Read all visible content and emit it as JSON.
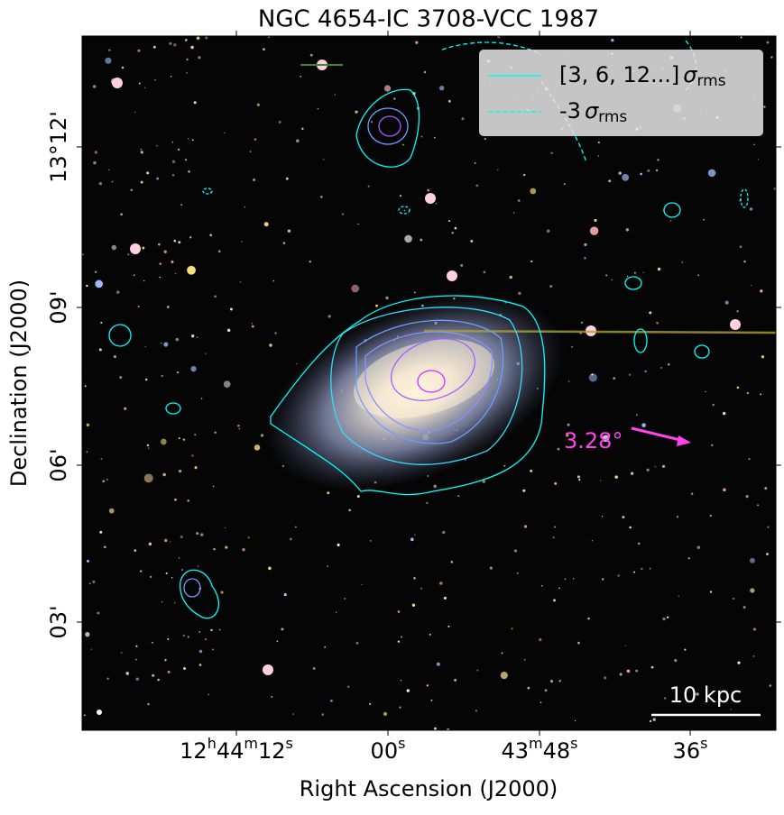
{
  "title": "NGC 4654-IC 3708-VCC 1987",
  "xlabel": "Right Ascension (J2000)",
  "ylabel": "Declination (J2000)",
  "xticks": [
    [
      [
        "12",
        "h"
      ],
      [
        "44",
        "m"
      ],
      [
        "12",
        "s"
      ]
    ],
    [
      [
        "00",
        "s"
      ]
    ],
    [
      [
        "43",
        "m"
      ],
      [
        "48",
        "s"
      ]
    ],
    [
      [
        "36",
        "s"
      ]
    ]
  ],
  "yticks": [
    "13°12'",
    "09'",
    "06'",
    "03'"
  ],
  "legend": [
    {
      "text": "[3, 6, 12...]",
      "symbol": "σ",
      "sub": "rms",
      "color": "#00ffff",
      "dash": false
    },
    {
      "text": "-3",
      "symbol": "σ",
      "sub": "rms",
      "color": "#00ffff",
      "dash": true
    }
  ],
  "angle_label": "3.28°",
  "scale_label": "10 kpc"
}
